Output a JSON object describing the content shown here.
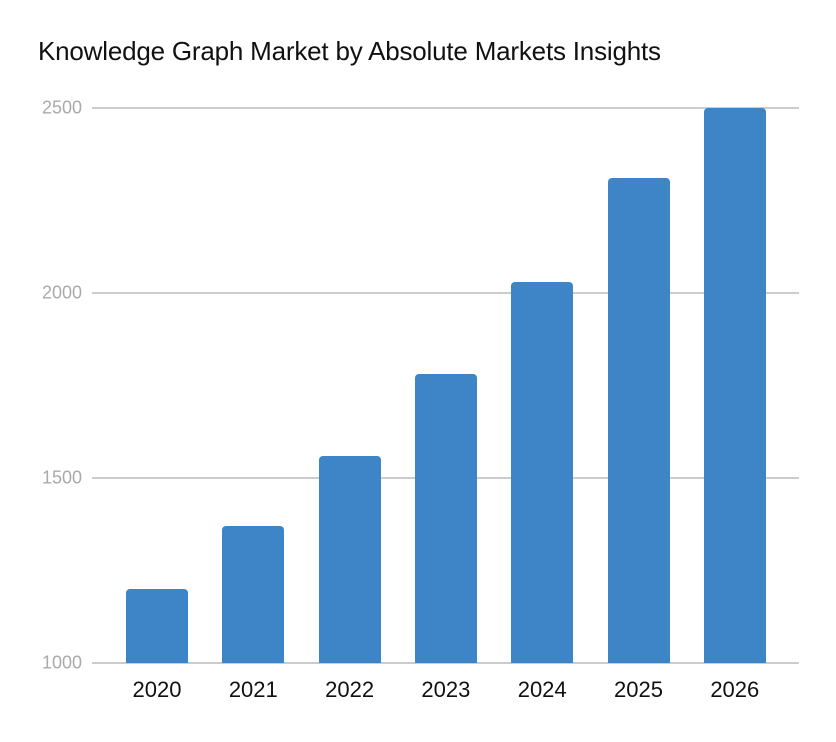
{
  "chart_data": {
    "type": "bar",
    "title": "Knowledge Graph Market by Absolute Markets Insights",
    "xlabel": "",
    "ylabel": "",
    "categories": [
      "2020",
      "2021",
      "2022",
      "2023",
      "2024",
      "2025",
      "2026"
    ],
    "values": [
      1200,
      1370,
      1560,
      1780,
      2030,
      2310,
      2500
    ],
    "ylim": [
      1000,
      2500
    ],
    "yticks": [
      "1000",
      "1500",
      "2000",
      "2500"
    ],
    "grid": true,
    "legend": null,
    "bar_color": "#3d85c6"
  }
}
